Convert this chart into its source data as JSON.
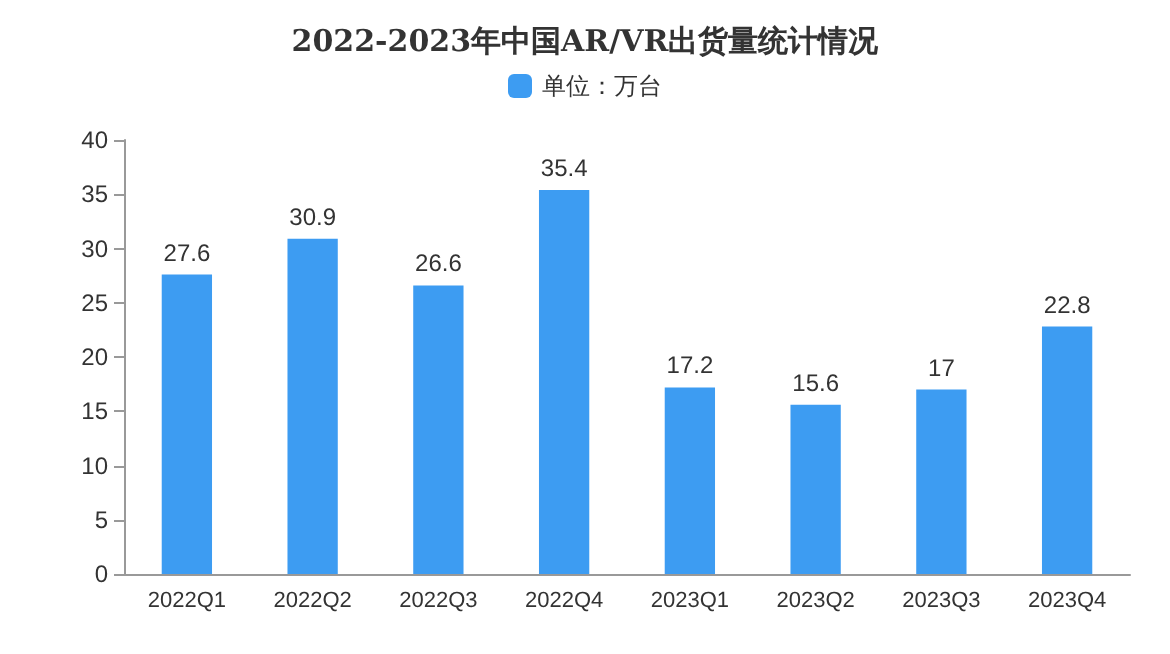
{
  "chart_data": {
    "type": "bar",
    "title": "2022-2023年中国AR/VR出货量统计情况",
    "categories": [
      "2022Q1",
      "2022Q2",
      "2022Q3",
      "2022Q4",
      "2023Q1",
      "2023Q2",
      "2023Q3",
      "2023Q4"
    ],
    "series": [
      {
        "name": "单位：万台",
        "color": "#3d9cf2",
        "values": [
          27.6,
          30.9,
          26.6,
          35.4,
          17.2,
          15.6,
          17,
          22.8
        ]
      }
    ],
    "ylim": [
      0,
      40
    ],
    "yticks": [
      0,
      5,
      10,
      15,
      20,
      25,
      30,
      35,
      40
    ],
    "grid": false,
    "legend": "top",
    "data_labels": true
  }
}
